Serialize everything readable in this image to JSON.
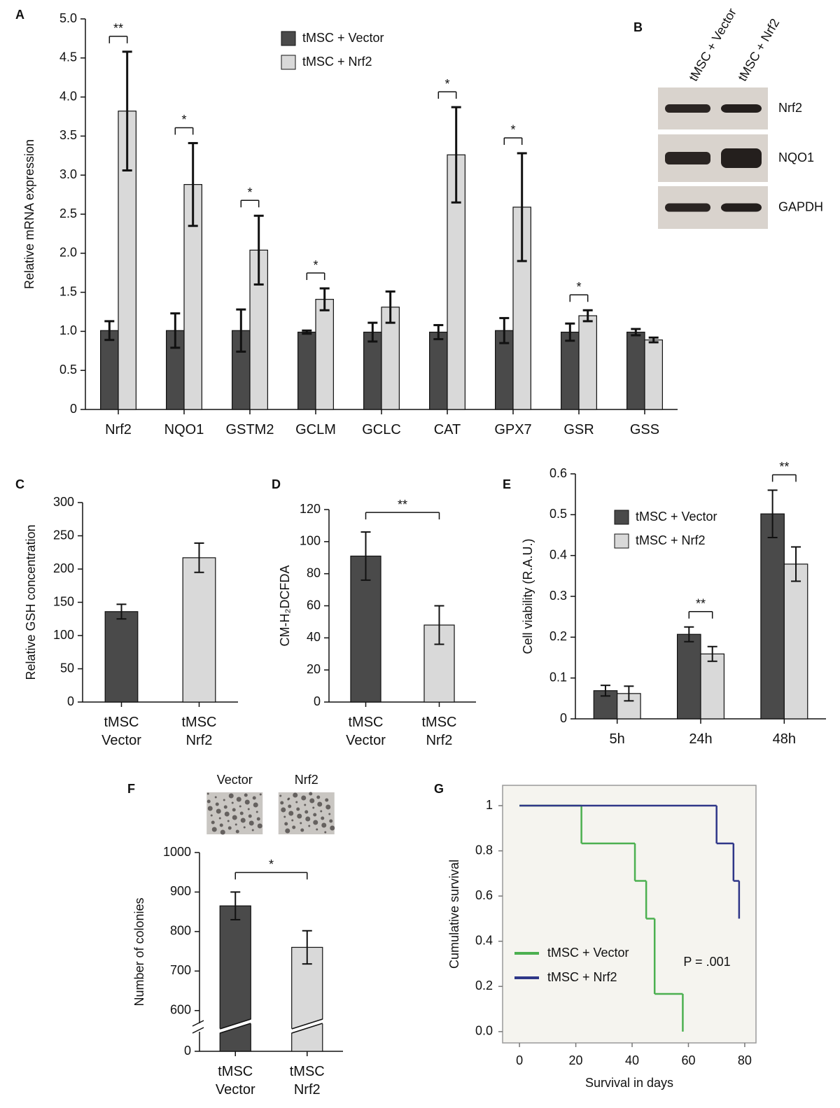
{
  "chart_data": [
    {
      "type": "bar",
      "panel": "A",
      "ylabel": "Relative mRNA expression",
      "legend": "top",
      "categories": [
        "Nrf2",
        "NQO1",
        "GSTM2",
        "GCLM",
        "GCLC",
        "CAT",
        "GPX7",
        "GSR",
        "GSS"
      ],
      "series": [
        {
          "name": "tMSC + Vector",
          "color": "#4a4a4a",
          "values": [
            1.01,
            1.01,
            1.01,
            0.99,
            0.99,
            0.99,
            1.01,
            0.99,
            0.99
          ],
          "errors": [
            0.12,
            0.22,
            0.27,
            0.02,
            0.12,
            0.09,
            0.16,
            0.11,
            0.04
          ]
        },
        {
          "name": "tMSC + Nrf2",
          "color": "#d9d9d9",
          "values": [
            3.82,
            2.88,
            2.04,
            1.41,
            1.31,
            3.26,
            2.59,
            1.2,
            0.89
          ],
          "errors": [
            0.76,
            0.53,
            0.44,
            0.14,
            0.2,
            0.61,
            0.69,
            0.07,
            0.03
          ]
        }
      ],
      "significance": [
        "**",
        "*",
        "*",
        "*",
        null,
        "*",
        "*",
        "*",
        null
      ],
      "ylim": [
        0,
        5
      ],
      "yticks": [
        0,
        0.5,
        {
          "value": 1,
          "label": "1.0"
        },
        1.5,
        {
          "value": 2,
          "label": "2.0"
        },
        2.5,
        {
          "value": 3,
          "label": "3.0"
        },
        3.5,
        {
          "value": 4,
          "label": "4.0"
        },
        4.5,
        {
          "value": 5,
          "label": "5.0"
        }
      ]
    },
    {
      "type": "bar",
      "panel": "C",
      "ylabel": "Relative GSH concentration",
      "categories": [
        "tMSC\nVector",
        "tMSC\nNrf2"
      ],
      "colors": [
        "#4a4a4a",
        "#d9d9d9"
      ],
      "values": [
        136,
        217
      ],
      "errors": [
        11,
        22
      ],
      "ylim": [
        0,
        300
      ],
      "yticks": [
        0,
        50,
        100,
        150,
        200,
        250,
        300
      ]
    },
    {
      "type": "bar",
      "panel": "D",
      "ylabel": "CM-H₂DCFDA",
      "categories": [
        "tMSC\nVector",
        "tMSC\nNrf2"
      ],
      "colors": [
        "#4a4a4a",
        "#d9d9d9"
      ],
      "values": [
        91,
        48
      ],
      "errors": [
        15,
        12
      ],
      "significance": "**",
      "ylim": [
        0,
        120
      ],
      "yticks": [
        0,
        20,
        40,
        60,
        80,
        100,
        120
      ]
    },
    {
      "type": "bar",
      "panel": "E",
      "ylabel": "Cell viability (R.A.U.)",
      "legend": "top-right",
      "categories": [
        "5h",
        "24h",
        "48h"
      ],
      "series": [
        {
          "name": "tMSC + Vector",
          "color": "#4a4a4a",
          "values": [
            0.069,
            0.207,
            0.502
          ],
          "errors": [
            0.013,
            0.018,
            0.058
          ]
        },
        {
          "name": "tMSC + Nrf2",
          "color": "#d9d9d9",
          "values": [
            0.062,
            0.159,
            0.379
          ],
          "errors": [
            0.018,
            0.018,
            0.042
          ]
        }
      ],
      "significance": [
        null,
        "**",
        "**"
      ],
      "ylim": [
        0,
        0.6
      ],
      "yticks": [
        0,
        0.1,
        0.2,
        0.3,
        0.4,
        0.5,
        0.6
      ]
    },
    {
      "type": "bar",
      "panel": "F",
      "ylabel": "Number of colonies",
      "axis_break": true,
      "images": [
        "Vector",
        "Nrf2"
      ],
      "categories": [
        "tMSC\nVector",
        "tMSC\nNrf2"
      ],
      "colors": [
        "#4a4a4a",
        "#d9d9d9"
      ],
      "values": [
        865,
        760
      ],
      "errors": [
        35,
        42
      ],
      "significance": "*",
      "ylim": [
        0,
        1000
      ],
      "yticks": [
        0,
        600,
        700,
        800,
        900,
        1000
      ]
    },
    {
      "type": "line",
      "step": true,
      "panel": "G",
      "xlabel": "Survival in days",
      "ylabel": "Cumulative survival",
      "annotation": "P = .001",
      "legend": "bottom-left",
      "series": [
        {
          "name": "tMSC + Vector",
          "color": "#4cb050",
          "x": [
            0,
            22,
            41,
            45,
            48,
            58
          ],
          "values": [
            1,
            0.833,
            0.667,
            0.5,
            0.167,
            0
          ]
        },
        {
          "name": "tMSC + Nrf2",
          "color": "#2f3788",
          "x": [
            0,
            70,
            76,
            78
          ],
          "values": [
            1,
            0.833,
            0.667,
            0.5
          ]
        }
      ],
      "xlim": [
        -6,
        84
      ],
      "xticks": [
        0,
        20,
        40,
        60,
        80
      ],
      "ylim": [
        -0.05,
        1.09
      ],
      "yticks": [
        {
          "value": 0,
          "label": "0.0"
        },
        0.2,
        0.4,
        0.6,
        0.8,
        1
      ]
    }
  ],
  "blot": {
    "panel": "B",
    "columns": [
      "tMSC + Vector",
      "tMSC + Nrf2"
    ],
    "rows": [
      "Nrf2",
      "NQO1",
      "GAPDH"
    ]
  }
}
